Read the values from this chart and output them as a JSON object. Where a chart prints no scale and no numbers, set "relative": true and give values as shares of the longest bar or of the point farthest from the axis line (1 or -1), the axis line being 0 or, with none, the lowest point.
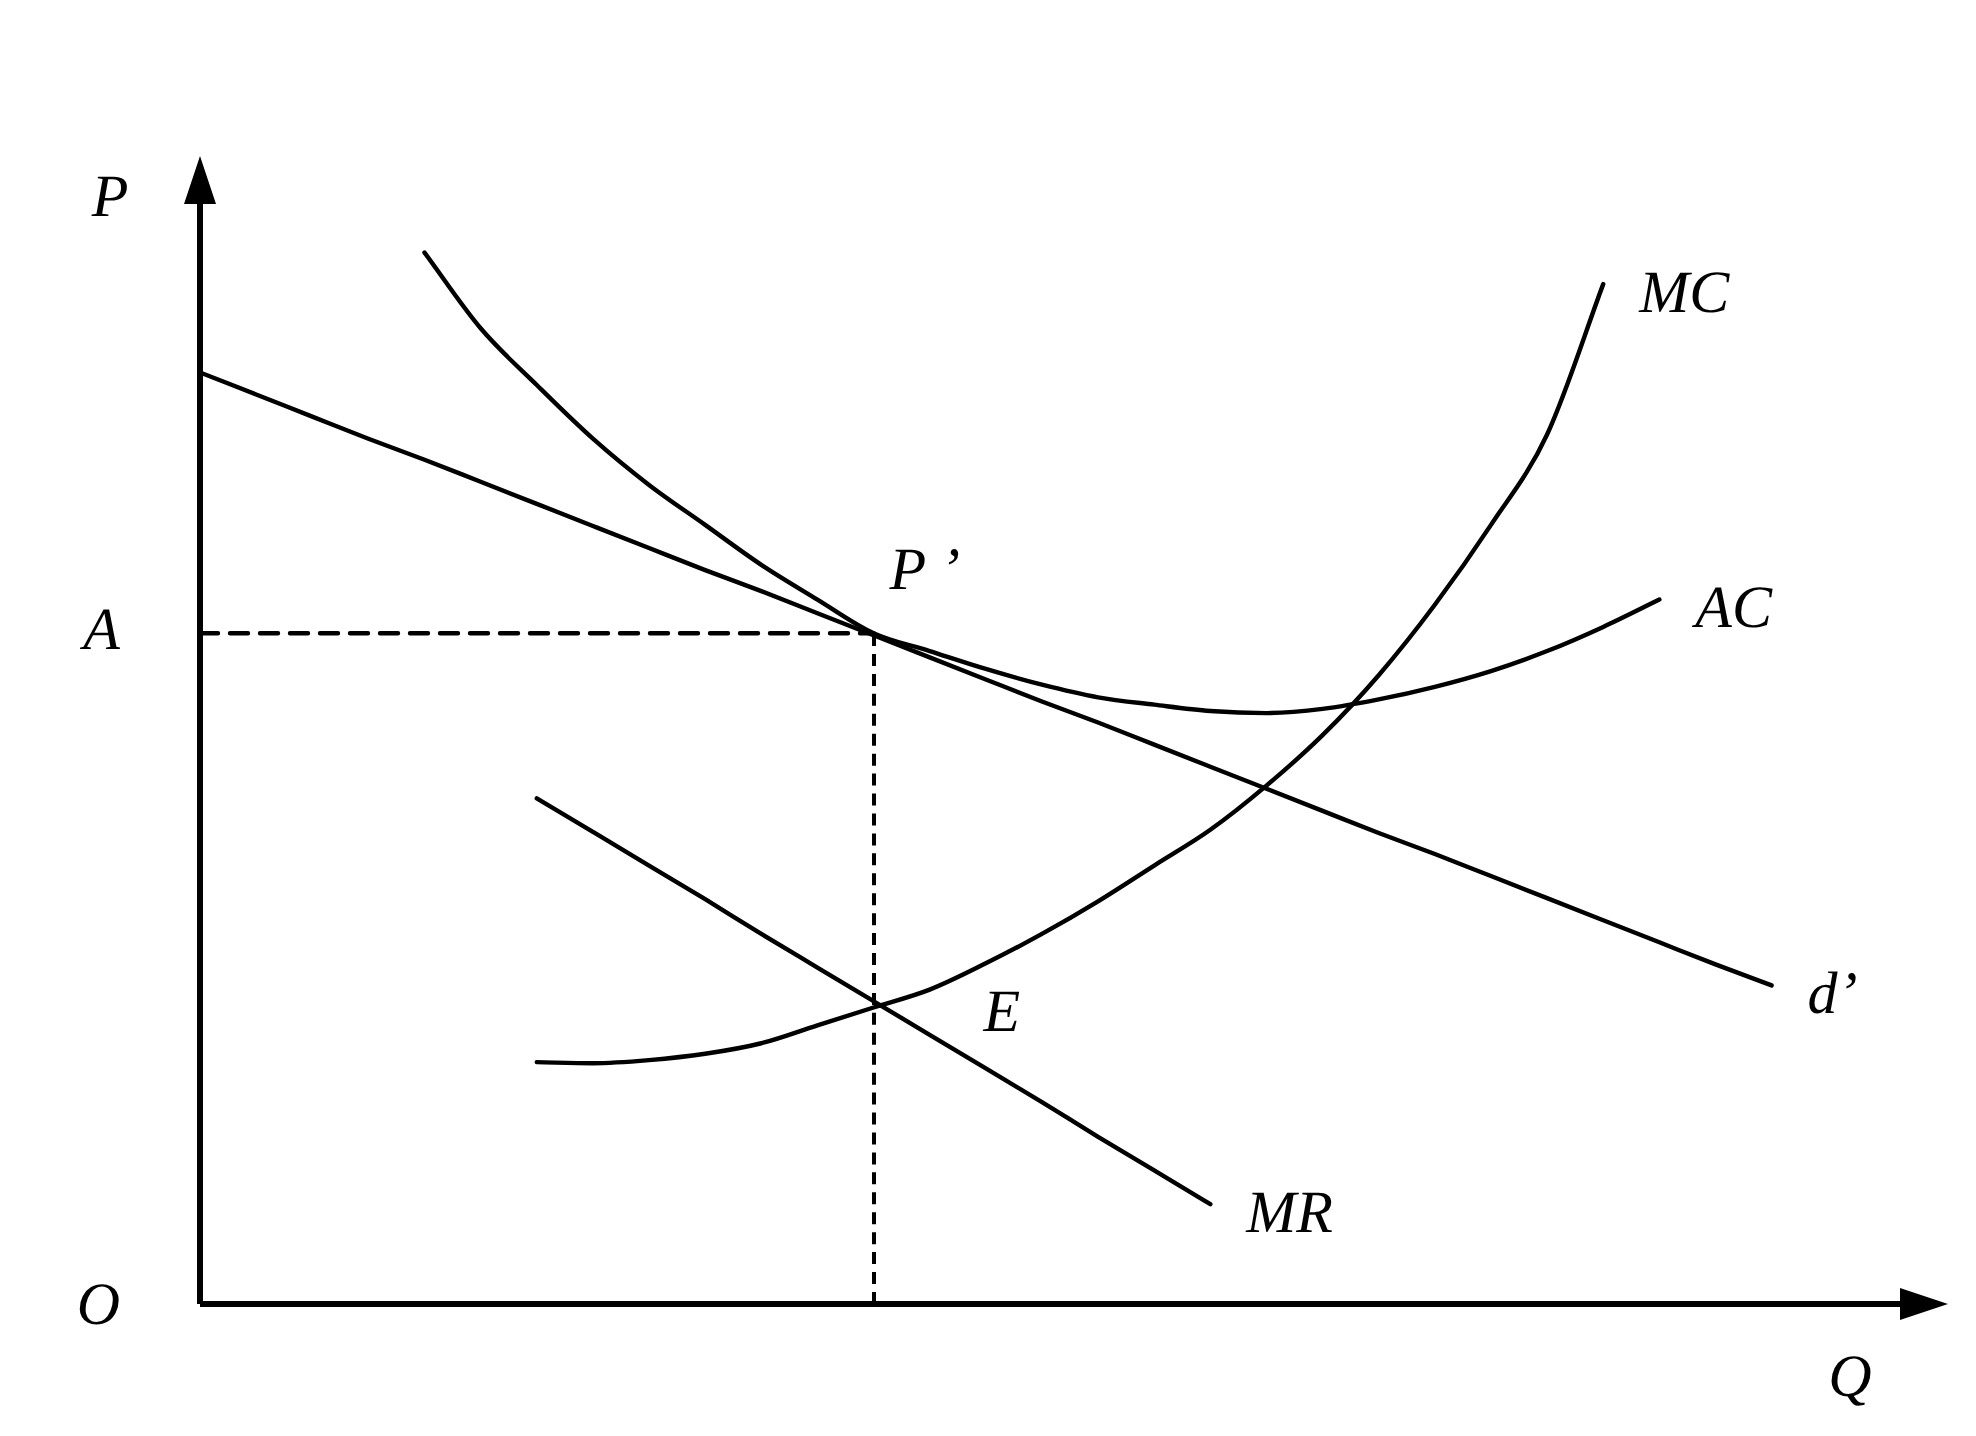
{
  "chart_data": {
    "type": "line",
    "relative": true,
    "marker": "none",
    "xlabel": "Q",
    "ylabel": "P",
    "categories": [
      null,
      null,
      null,
      null,
      null,
      null,
      null,
      null,
      null,
      null,
      null,
      null,
      null,
      null,
      null,
      null,
      null,
      null,
      null,
      null,
      null,
      null,
      null,
      null,
      null,
      null,
      null,
      null,
      null,
      null,
      null,
      null
    ],
    "series": [
      {
        "name": "d’",
        "color": "#000000",
        "values": [
          0.886,
          0.865,
          0.844,
          0.823,
          0.803,
          0.782,
          0.761,
          0.74,
          0.719,
          0.698,
          0.678,
          0.657,
          0.636,
          0.615,
          0.594,
          0.573,
          0.553,
          0.532,
          0.511,
          0.49,
          0.469,
          0.448,
          0.428,
          0.407,
          0.386,
          0.365,
          0.344,
          0.323,
          0.303,
          null,
          null,
          null
        ]
      },
      {
        "name": "AC",
        "color": "#000000",
        "values": [
          null,
          null,
          null,
          null,
          1.0,
          0.928,
          0.874,
          0.823,
          0.779,
          0.741,
          0.703,
          0.67,
          0.638,
          0.621,
          0.604,
          0.589,
          0.577,
          0.57,
          0.564,
          0.562,
          0.566,
          0.575,
          0.587,
          0.602,
          0.621,
          0.644,
          0.67,
          null,
          null,
          null,
          null,
          null
        ]
      },
      {
        "name": "MC",
        "color": "#000000",
        "values": [
          null,
          null,
          null,
          null,
          null,
          null,
          0.23,
          0.229,
          0.232,
          0.238,
          0.248,
          0.265,
          0.282,
          0.299,
          0.324,
          0.352,
          0.383,
          0.417,
          0.451,
          0.493,
          0.541,
          0.598,
          0.665,
          0.741,
          0.827,
          0.97,
          null,
          null,
          null,
          null,
          null,
          null
        ]
      },
      {
        "name": "MR",
        "color": "#000000",
        "values": [
          null,
          null,
          null,
          null,
          null,
          null,
          0.481,
          0.449,
          0.417,
          0.385,
          0.352,
          0.32,
          0.288,
          0.256,
          0.224,
          0.192,
          0.159,
          0.127,
          0.095,
          null,
          null,
          null,
          null,
          null,
          null,
          null,
          null,
          null,
          null,
          null,
          null,
          null
        ]
      },
      {
        "color": "#000000",
        "line_style": "dashed",
        "values": [
          0.638,
          0.638,
          0.638,
          0.638,
          0.638,
          0.638,
          0.638,
          0.638,
          0.638,
          0.638,
          0.638,
          0.638,
          0.638,
          null,
          null,
          null,
          null,
          null,
          null,
          null,
          null,
          null,
          null,
          null,
          null,
          null,
          null,
          null,
          null,
          null,
          null,
          null
        ]
      }
    ],
    "annotations": [
      "P ’",
      "E",
      "A",
      "O"
    ]
  }
}
